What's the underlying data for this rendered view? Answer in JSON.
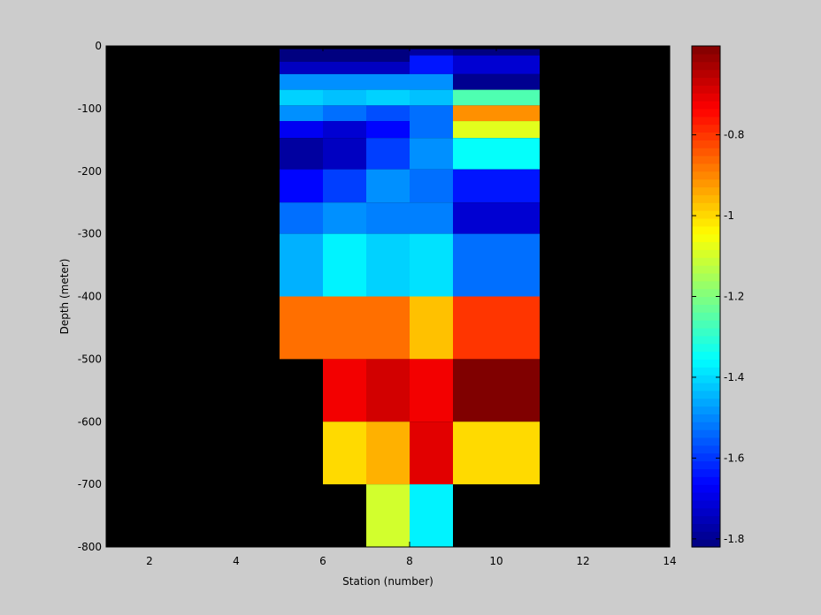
{
  "chart_data": {
    "type": "heatmap",
    "title": "",
    "xlabel": "Station (number)",
    "ylabel": "Depth (meter)",
    "xlim": [
      1,
      14
    ],
    "ylim": [
      -800,
      0
    ],
    "xticks": [
      2,
      4,
      6,
      8,
      10,
      12,
      14
    ],
    "yticks": [
      0,
      -100,
      -200,
      -300,
      -400,
      -500,
      -600,
      -700,
      -800
    ],
    "background_color": "#000000",
    "colormap": "jet",
    "colorbar": {
      "range": [
        -1.82,
        -0.58
      ],
      "ticks": [
        -0.8,
        -1,
        -1.2,
        -1.4,
        -1.6,
        -1.8
      ],
      "placement": "right"
    },
    "columns": [
      {
        "x_range": [
          5,
          6
        ],
        "cells": [
          {
            "depth": [
              -5,
              -25
            ],
            "value": -1.82
          },
          {
            "depth": [
              -25,
              -45
            ],
            "value": -1.74
          },
          {
            "depth": [
              -45,
              -70
            ],
            "value": -1.49
          },
          {
            "depth": [
              -70,
              -95
            ],
            "value": -1.41
          },
          {
            "depth": [
              -95,
              -120
            ],
            "value": -1.49
          },
          {
            "depth": [
              -120,
              -147
            ],
            "value": -1.68
          },
          {
            "depth": [
              -147,
              -197
            ],
            "value": -1.78
          },
          {
            "depth": [
              -197,
              -250
            ],
            "value": -1.66
          },
          {
            "depth": [
              -250,
              -300
            ],
            "value": -1.53
          },
          {
            "depth": [
              -300,
              -400
            ],
            "value": -1.45
          },
          {
            "depth": [
              -400,
              -500
            ],
            "value": -0.87
          }
        ]
      },
      {
        "x_range": [
          6,
          7
        ],
        "cells": [
          {
            "depth": [
              -5,
              -25
            ],
            "value": -1.82
          },
          {
            "depth": [
              -25,
              -45
            ],
            "value": -1.74
          },
          {
            "depth": [
              -45,
              -70
            ],
            "value": -1.49
          },
          {
            "depth": [
              -70,
              -95
            ],
            "value": -1.43
          },
          {
            "depth": [
              -95,
              -120
            ],
            "value": -1.53
          },
          {
            "depth": [
              -120,
              -147
            ],
            "value": -1.72
          },
          {
            "depth": [
              -147,
              -197
            ],
            "value": -1.74
          },
          {
            "depth": [
              -197,
              -250
            ],
            "value": -1.59
          },
          {
            "depth": [
              -250,
              -300
            ],
            "value": -1.49
          },
          {
            "depth": [
              -300,
              -400
            ],
            "value": -1.37
          },
          {
            "depth": [
              -400,
              -500
            ],
            "value": -0.87
          },
          {
            "depth": [
              -500,
              -600
            ],
            "value": -0.72
          },
          {
            "depth": [
              -600,
              -700
            ],
            "value": -1.0
          }
        ]
      },
      {
        "x_range": [
          7,
          8
        ],
        "cells": [
          {
            "depth": [
              -5,
              -25
            ],
            "value": -1.82
          },
          {
            "depth": [
              -25,
              -45
            ],
            "value": -1.74
          },
          {
            "depth": [
              -45,
              -70
            ],
            "value": -1.49
          },
          {
            "depth": [
              -70,
              -95
            ],
            "value": -1.41
          },
          {
            "depth": [
              -95,
              -120
            ],
            "value": -1.57
          },
          {
            "depth": [
              -120,
              -147
            ],
            "value": -1.66
          },
          {
            "depth": [
              -147,
              -197
            ],
            "value": -1.59
          },
          {
            "depth": [
              -197,
              -250
            ],
            "value": -1.49
          },
          {
            "depth": [
              -250,
              -300
            ],
            "value": -1.51
          },
          {
            "depth": [
              -300,
              -400
            ],
            "value": -1.41
          },
          {
            "depth": [
              -400,
              -500
            ],
            "value": -0.87
          },
          {
            "depth": [
              -500,
              -600
            ],
            "value": -0.68
          },
          {
            "depth": [
              -600,
              -700
            ],
            "value": -0.95
          },
          {
            "depth": [
              -700,
              -800
            ],
            "value": -1.1
          }
        ]
      },
      {
        "x_range": [
          8,
          9
        ],
        "cells": [
          {
            "depth": [
              -5,
              -15
            ],
            "value": -1.78
          },
          {
            "depth": [
              -15,
              -45
            ],
            "value": -1.64
          },
          {
            "depth": [
              -45,
              -70
            ],
            "value": -1.49
          },
          {
            "depth": [
              -70,
              -95
            ],
            "value": -1.43
          },
          {
            "depth": [
              -95,
              -147
            ],
            "value": -1.53
          },
          {
            "depth": [
              -147,
              -197
            ],
            "value": -1.49
          },
          {
            "depth": [
              -197,
              -250
            ],
            "value": -1.53
          },
          {
            "depth": [
              -250,
              -300
            ],
            "value": -1.51
          },
          {
            "depth": [
              -300,
              -400
            ],
            "value": -1.39
          },
          {
            "depth": [
              -400,
              -500
            ],
            "value": -0.97
          },
          {
            "depth": [
              -500,
              -600
            ],
            "value": -0.72
          },
          {
            "depth": [
              -600,
              -700
            ],
            "value": -0.7
          },
          {
            "depth": [
              -700,
              -800
            ],
            "value": -1.37
          }
        ]
      },
      {
        "x_range": [
          9,
          11
        ],
        "cells": [
          {
            "depth": [
              -5,
              -15
            ],
            "value": -1.82
          },
          {
            "depth": [
              -15,
              -45
            ],
            "value": -1.72
          },
          {
            "depth": [
              -45,
              -70
            ],
            "value": -1.8
          },
          {
            "depth": [
              -70,
              -95
            ],
            "value": -1.26
          },
          {
            "depth": [
              -95,
              -120
            ],
            "value": -0.91
          },
          {
            "depth": [
              -120,
              -147
            ],
            "value": -1.08
          },
          {
            "depth": [
              -147,
              -197
            ],
            "value": -1.35
          },
          {
            "depth": [
              -197,
              -250
            ],
            "value": -1.64
          },
          {
            "depth": [
              -250,
              -300
            ],
            "value": -1.72
          },
          {
            "depth": [
              -300,
              -400
            ],
            "value": -1.53
          },
          {
            "depth": [
              -400,
              -500
            ],
            "value": -0.8
          },
          {
            "depth": [
              -500,
              -600
            ],
            "value": -0.58
          },
          {
            "depth": [
              -600,
              -700
            ],
            "value": -1.0
          }
        ]
      }
    ]
  }
}
